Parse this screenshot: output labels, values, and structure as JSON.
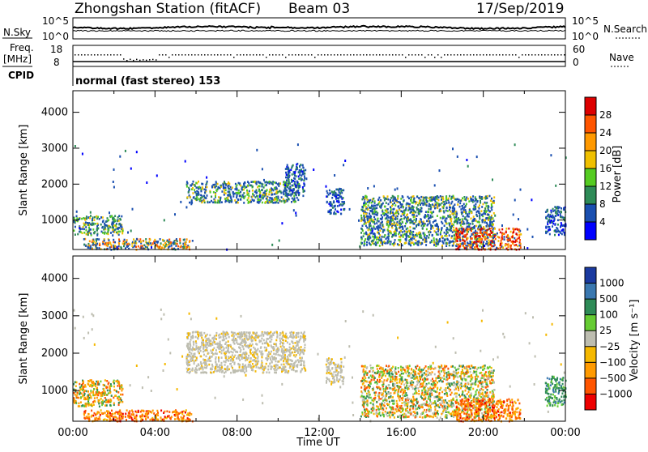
{
  "header": {
    "station": "Zhongshan Station (fitACF)",
    "beam": "Beam 03",
    "date": "17/Sep/2019"
  },
  "summary": {
    "nsky_label": "N.Sky",
    "nsky_ticks": [
      "10^5",
      "10^0"
    ],
    "nsearch_label": "N.Search",
    "nsearch_ticks": [
      "10^5",
      "10^0"
    ],
    "freq_label_1": "Freq.",
    "freq_label_2": "[MHz]",
    "freq_ticks": [
      "18",
      "8"
    ],
    "nave_label": "Nave",
    "nave_ticks": [
      "60",
      "0"
    ],
    "cpid_label": "CPID",
    "cpid_text": "normal (fast stereo) 153"
  },
  "axes": {
    "ylabel": "Slant Range [km]",
    "yticks": [
      "4000",
      "3000",
      "2000",
      "1000"
    ],
    "xlabel": "Time UT",
    "xticks": [
      "00:00",
      "04:00",
      "08:00",
      "12:00",
      "16:00",
      "20:00",
      "00:00"
    ]
  },
  "chart_data": [
    {
      "type": "heatmap",
      "name": "power",
      "xlabel": "Time UT",
      "ylabel": "Slant Range [km]",
      "xlim_hours": [
        0,
        24
      ],
      "ylim": [
        180,
        4600
      ],
      "colorbar": {
        "label": "Power [dB]",
        "ticks": [
          "28",
          "24",
          "20",
          "16",
          "12",
          "8",
          "4"
        ],
        "colors": [
          "#dd0000",
          "#ff5500",
          "#ff9900",
          "#f0c000",
          "#55cc22",
          "#2e8b57",
          "#1a4fb0",
          "#0000ff"
        ]
      },
      "regions": [
        {
          "t": [
            0.0,
            2.4
          ],
          "r": [
            600,
            1150
          ],
          "dominant": "green/blue"
        },
        {
          "t": [
            0.5,
            5.8
          ],
          "r": [
            200,
            500
          ],
          "dominant": "blue/orange"
        },
        {
          "t": [
            5.5,
            11.0
          ],
          "r": [
            1500,
            2100
          ],
          "dominant": "blue/green"
        },
        {
          "t": [
            10.3,
            11.3
          ],
          "r": [
            1700,
            2600
          ],
          "dominant": "blue"
        },
        {
          "t": [
            12.3,
            13.2
          ],
          "r": [
            1200,
            1900
          ],
          "dominant": "blue"
        },
        {
          "t": [
            14.0,
            20.5
          ],
          "r": [
            300,
            1700
          ],
          "dominant": "blue/green"
        },
        {
          "t": [
            18.6,
            21.8
          ],
          "r": [
            200,
            800
          ],
          "dominant": "orange/red"
        },
        {
          "t": [
            23.0,
            24.0
          ],
          "r": [
            600,
            1400
          ],
          "dominant": "blue"
        }
      ]
    },
    {
      "type": "heatmap",
      "name": "velocity",
      "xlabel": "Time UT",
      "ylabel": "Slant Range [km]",
      "xlim_hours": [
        0,
        24
      ],
      "ylim": [
        180,
        4600
      ],
      "colorbar": {
        "label": "Velocity [m s⁻¹]",
        "ticks": [
          "1000",
          "500",
          "100",
          "25",
          "−25",
          "−100",
          "−500",
          "−1000"
        ],
        "colors": [
          "#1a3aa0",
          "#3a78b0",
          "#2e8b57",
          "#66cc33",
          "#bdbdb0",
          "#f5b800",
          "#ff9a00",
          "#ff5500",
          "#ee0000"
        ]
      },
      "regions": [
        {
          "t": [
            0.0,
            2.4
          ],
          "r": [
            600,
            1300
          ],
          "dominant": "orange/green"
        },
        {
          "t": [
            0.5,
            5.8
          ],
          "r": [
            200,
            500
          ],
          "dominant": "orange"
        },
        {
          "t": [
            5.5,
            11.3
          ],
          "r": [
            1500,
            2600
          ],
          "dominant": "grey"
        },
        {
          "t": [
            12.3,
            13.2
          ],
          "r": [
            1200,
            1900
          ],
          "dominant": "grey"
        },
        {
          "t": [
            14.0,
            20.5
          ],
          "r": [
            300,
            1700
          ],
          "dominant": "orange/grey/green"
        },
        {
          "t": [
            18.6,
            21.8
          ],
          "r": [
            200,
            800
          ],
          "dominant": "orange"
        },
        {
          "t": [
            23.0,
            24.0
          ],
          "r": [
            600,
            1400
          ],
          "dominant": "green"
        }
      ]
    }
  ]
}
